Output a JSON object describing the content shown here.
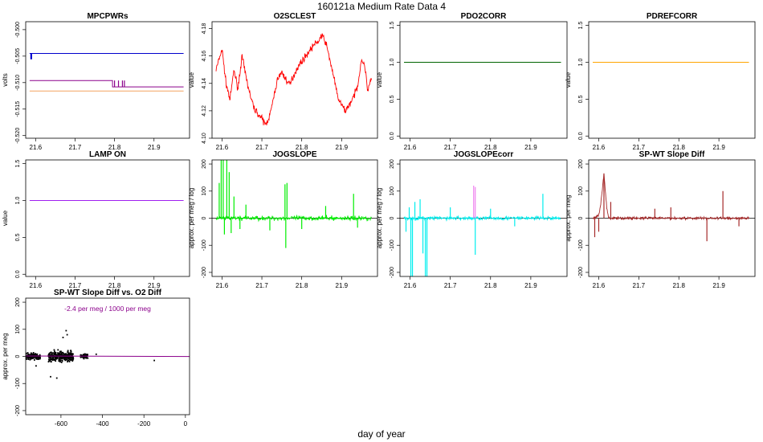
{
  "page": {
    "title": "160121a   Medium Rate Data 4",
    "xlabel": "day of year"
  },
  "chart_data": [
    {
      "id": "mpcpwrs",
      "type": "line",
      "title": "MPCPWRs",
      "ylabel": "volts",
      "xlim": [
        21.575,
        21.99
      ],
      "ylim": [
        -0.5205,
        -0.4985
      ],
      "xticks": [
        21.6,
        21.7,
        21.8,
        21.9
      ],
      "yticks": [
        -0.52,
        -0.515,
        -0.51,
        -0.505,
        -0.5
      ],
      "series": [
        {
          "color": "#0000cc",
          "x": [
            21.585,
            21.975
          ],
          "y": [
            -0.5045,
            -0.5045
          ],
          "spikes": [
            {
              "x": 21.588,
              "y0": -0.5045,
              "y1": -0.5056
            },
            {
              "x": 21.59,
              "y0": -0.5045,
              "y1": -0.5056
            }
          ]
        },
        {
          "color": "#8b008b",
          "x": [
            21.585,
            21.795,
            21.795,
            21.975
          ],
          "y": [
            -0.5096,
            -0.5096,
            -0.5108,
            -0.5108
          ],
          "spikes": [
            {
              "x": 21.8,
              "y0": -0.5096,
              "y1": -0.5108
            },
            {
              "x": 21.81,
              "y0": -0.5096,
              "y1": -0.5108
            },
            {
              "x": 21.82,
              "y0": -0.5096,
              "y1": -0.5108
            },
            {
              "x": 21.825,
              "y0": -0.5096,
              "y1": -0.5108
            }
          ]
        },
        {
          "color": "#f4a460",
          "x": [
            21.585,
            21.975
          ],
          "y": [
            -0.5116,
            -0.5116
          ]
        }
      ]
    },
    {
      "id": "o2sclest",
      "type": "line",
      "title": "O2SCLEST",
      "ylabel": "value",
      "xlim": [
        21.575,
        21.99
      ],
      "ylim": [
        4.1,
        4.185
      ],
      "xticks": [
        21.6,
        21.7,
        21.8,
        21.9
      ],
      "yticks": [
        4.1,
        4.12,
        4.14,
        4.16,
        4.18
      ],
      "series": [
        {
          "color": "#ff0000",
          "band": 0.004,
          "x": [
            21.585,
            21.6,
            21.61,
            21.62,
            21.63,
            21.64,
            21.65,
            21.66,
            21.67,
            21.68,
            21.69,
            21.7,
            21.71,
            21.72,
            21.73,
            21.74,
            21.75,
            21.76,
            21.77,
            21.78,
            21.79,
            21.8,
            21.81,
            21.82,
            21.83,
            21.84,
            21.85,
            21.86,
            21.87,
            21.88,
            21.89,
            21.9,
            21.91,
            21.92,
            21.93,
            21.94,
            21.95,
            21.96,
            21.965,
            21.975
          ],
          "y": [
            4.15,
            4.165,
            4.14,
            4.128,
            4.15,
            4.136,
            4.16,
            4.145,
            4.132,
            4.122,
            4.118,
            4.114,
            4.11,
            4.117,
            4.13,
            4.144,
            4.148,
            4.143,
            4.139,
            4.146,
            4.152,
            4.156,
            4.16,
            4.164,
            4.168,
            4.17,
            4.175,
            4.17,
            4.158,
            4.145,
            4.13,
            4.124,
            4.12,
            4.125,
            4.13,
            4.138,
            4.158,
            4.15,
            4.135,
            4.143
          ]
        }
      ]
    },
    {
      "id": "pdo2corr",
      "type": "line",
      "title": "PDO2CORR",
      "ylabel": "value",
      "xlim": [
        21.575,
        21.99
      ],
      "ylim": [
        -0.03,
        1.55
      ],
      "xticks": [
        21.6,
        21.7,
        21.8,
        21.9
      ],
      "yticks": [
        0.0,
        0.5,
        1.0,
        1.5
      ],
      "series": [
        {
          "color": "#006400",
          "x": [
            21.585,
            21.975
          ],
          "y": [
            1.0,
            1.0
          ]
        }
      ]
    },
    {
      "id": "pdrefcorr",
      "type": "line",
      "title": "PDREFCORR",
      "ylabel": "value",
      "xlim": [
        21.575,
        21.99
      ],
      "ylim": [
        -0.03,
        1.55
      ],
      "xticks": [
        21.6,
        21.7,
        21.8,
        21.9
      ],
      "yticks": [
        0.0,
        0.5,
        1.0,
        1.5
      ],
      "series": [
        {
          "color": "#ffa500",
          "x": [
            21.585,
            21.975
          ],
          "y": [
            1.0,
            1.0
          ]
        }
      ]
    },
    {
      "id": "lampon",
      "type": "line",
      "title": "LAMP ON",
      "ylabel": "value",
      "xlim": [
        21.575,
        21.99
      ],
      "ylim": [
        -0.03,
        1.55
      ],
      "xticks": [
        21.6,
        21.7,
        21.8,
        21.9
      ],
      "yticks": [
        0.0,
        0.5,
        1.0,
        1.5
      ],
      "series": [
        {
          "color": "#a020f0",
          "x": [
            21.585,
            21.975
          ],
          "y": [
            1.0,
            1.0
          ]
        }
      ]
    },
    {
      "id": "jogslope",
      "type": "line",
      "title": "JOGSLOPE",
      "ylabel": "approx. per meg / log",
      "xlim": [
        21.575,
        21.99
      ],
      "ylim": [
        -215,
        215
      ],
      "xticks": [
        21.6,
        21.7,
        21.8,
        21.9
      ],
      "yticks": [
        -200,
        -100,
        0,
        100,
        200
      ],
      "zero_line": true,
      "series": [
        {
          "color": "#00ee00",
          "band": 14,
          "x": [
            21.585,
            21.975
          ],
          "y": [
            0,
            0
          ],
          "spikes": [
            {
              "x": 21.593,
              "y0": 0,
              "y1": 130
            },
            {
              "x": 21.598,
              "y0": 0,
              "y1": 215
            },
            {
              "x": 21.603,
              "y0": 0,
              "y1": 215
            },
            {
              "x": 21.606,
              "y0": 0,
              "y1": -60
            },
            {
              "x": 21.612,
              "y0": 0,
              "y1": 215
            },
            {
              "x": 21.618,
              "y0": 0,
              "y1": 170
            },
            {
              "x": 21.623,
              "y0": 0,
              "y1": -55
            },
            {
              "x": 21.63,
              "y0": 0,
              "y1": 80
            },
            {
              "x": 21.645,
              "y0": 0,
              "y1": -40
            },
            {
              "x": 21.66,
              "y0": 0,
              "y1": 50
            },
            {
              "x": 21.72,
              "y0": 0,
              "y1": -45
            },
            {
              "x": 21.758,
              "y0": 0,
              "y1": 125
            },
            {
              "x": 21.763,
              "y0": 0,
              "y1": 130
            },
            {
              "x": 21.76,
              "y0": 0,
              "y1": -110
            },
            {
              "x": 21.8,
              "y0": 0,
              "y1": -40
            },
            {
              "x": 21.86,
              "y0": 0,
              "y1": 45
            },
            {
              "x": 21.93,
              "y0": 0,
              "y1": 90
            },
            {
              "x": 21.94,
              "y0": 0,
              "y1": -35
            }
          ]
        }
      ]
    },
    {
      "id": "jogslopecorr",
      "type": "line",
      "title": "JOGSLOPEcorr",
      "ylabel": "approx. per meg / log",
      "xlim": [
        21.575,
        21.99
      ],
      "ylim": [
        -215,
        215
      ],
      "xticks": [
        21.6,
        21.7,
        21.8,
        21.9
      ],
      "yticks": [
        -200,
        -100,
        0,
        100,
        200
      ],
      "zero_line": true,
      "series": [
        {
          "color": "#00eeee",
          "band": 12,
          "x": [
            21.585,
            21.975
          ],
          "y": [
            0,
            0
          ],
          "spikes": [
            {
              "x": 21.59,
              "y0": 0,
              "y1": -50
            },
            {
              "x": 21.598,
              "y0": 0,
              "y1": 40
            },
            {
              "x": 21.602,
              "y0": 0,
              "y1": -215
            },
            {
              "x": 21.606,
              "y0": 0,
              "y1": -215
            },
            {
              "x": 21.612,
              "y0": 0,
              "y1": 60
            },
            {
              "x": 21.625,
              "y0": 0,
              "y1": 70
            },
            {
              "x": 21.632,
              "y0": 0,
              "y1": -130
            },
            {
              "x": 21.638,
              "y0": 0,
              "y1": -215
            },
            {
              "x": 21.642,
              "y0": 0,
              "y1": -215
            },
            {
              "x": 21.7,
              "y0": 0,
              "y1": 40
            },
            {
              "x": 21.762,
              "y0": 0,
              "y1": -135
            },
            {
              "x": 21.8,
              "y0": 0,
              "y1": 35
            },
            {
              "x": 21.86,
              "y0": 0,
              "y1": -30
            },
            {
              "x": 21.93,
              "y0": 0,
              "y1": 90
            }
          ]
        },
        {
          "color": "#ee82ee",
          "x": [
            21.758,
            21.758
          ],
          "y": [
            0,
            0
          ],
          "spikes": [
            {
              "x": 21.758,
              "y0": 0,
              "y1": 120
            },
            {
              "x": 21.762,
              "y0": 0,
              "y1": 115
            }
          ]
        }
      ]
    },
    {
      "id": "spwtslopediff",
      "type": "line",
      "title": "SP-WT Slope Diff",
      "ylabel": "approx. per meg",
      "xlim": [
        21.575,
        21.99
      ],
      "ylim": [
        -215,
        215
      ],
      "xticks": [
        21.6,
        21.7,
        21.8,
        21.9
      ],
      "yticks": [
        -200,
        -100,
        0,
        100,
        200
      ],
      "zero_line": true,
      "series": [
        {
          "color": "#a52a2a",
          "band": 9,
          "x": [
            21.585,
            21.6,
            21.605,
            21.613,
            21.62,
            21.625,
            21.63,
            21.975
          ],
          "y": [
            0,
            10,
            50,
            165,
            40,
            0,
            0,
            0
          ],
          "spikes": [
            {
              "x": 21.59,
              "y0": 0,
              "y1": -70
            },
            {
              "x": 21.6,
              "y0": 0,
              "y1": -50
            },
            {
              "x": 21.613,
              "y0": 0,
              "y1": 165
            },
            {
              "x": 21.63,
              "y0": 0,
              "y1": 60
            },
            {
              "x": 21.74,
              "y0": 0,
              "y1": 35
            },
            {
              "x": 21.78,
              "y0": 0,
              "y1": 40
            },
            {
              "x": 21.87,
              "y0": 0,
              "y1": -85
            },
            {
              "x": 21.91,
              "y0": 0,
              "y1": 100
            },
            {
              "x": 21.95,
              "y0": 0,
              "y1": -30
            }
          ]
        }
      ]
    },
    {
      "id": "spwtvso2",
      "type": "scatter",
      "title": "SP-WT Slope Diff vs. O2 Diff",
      "ylabel": "approx. per meg",
      "annotation": "-2.4 per meg / 1000 per meg",
      "annotation_color": "#8b008b",
      "xlim": [
        -770,
        20
      ],
      "ylim": [
        -215,
        215
      ],
      "xticks": [
        -600,
        -400,
        -200,
        0
      ],
      "yticks": [
        -200,
        -100,
        0,
        100,
        200
      ],
      "clusters": [
        {
          "x0": -770,
          "x1": -700,
          "y_spread": 20,
          "n": 130
        },
        {
          "x0": -660,
          "x1": -540,
          "y_spread": 32,
          "n": 300
        },
        {
          "x0": -505,
          "x1": -470,
          "y_spread": 14,
          "n": 60
        }
      ],
      "points": [
        {
          "x": -575,
          "y": 95
        },
        {
          "x": -590,
          "y": 70
        },
        {
          "x": -650,
          "y": -75
        },
        {
          "x": -620,
          "y": -80
        },
        {
          "x": -570,
          "y": 80
        },
        {
          "x": -430,
          "y": 8
        },
        {
          "x": -150,
          "y": -15
        },
        {
          "x": -720,
          "y": -35
        }
      ],
      "fit": {
        "color": "#8b008b",
        "x": [
          -770,
          20
        ],
        "y": [
          1.5,
          -0.4
        ]
      }
    }
  ]
}
